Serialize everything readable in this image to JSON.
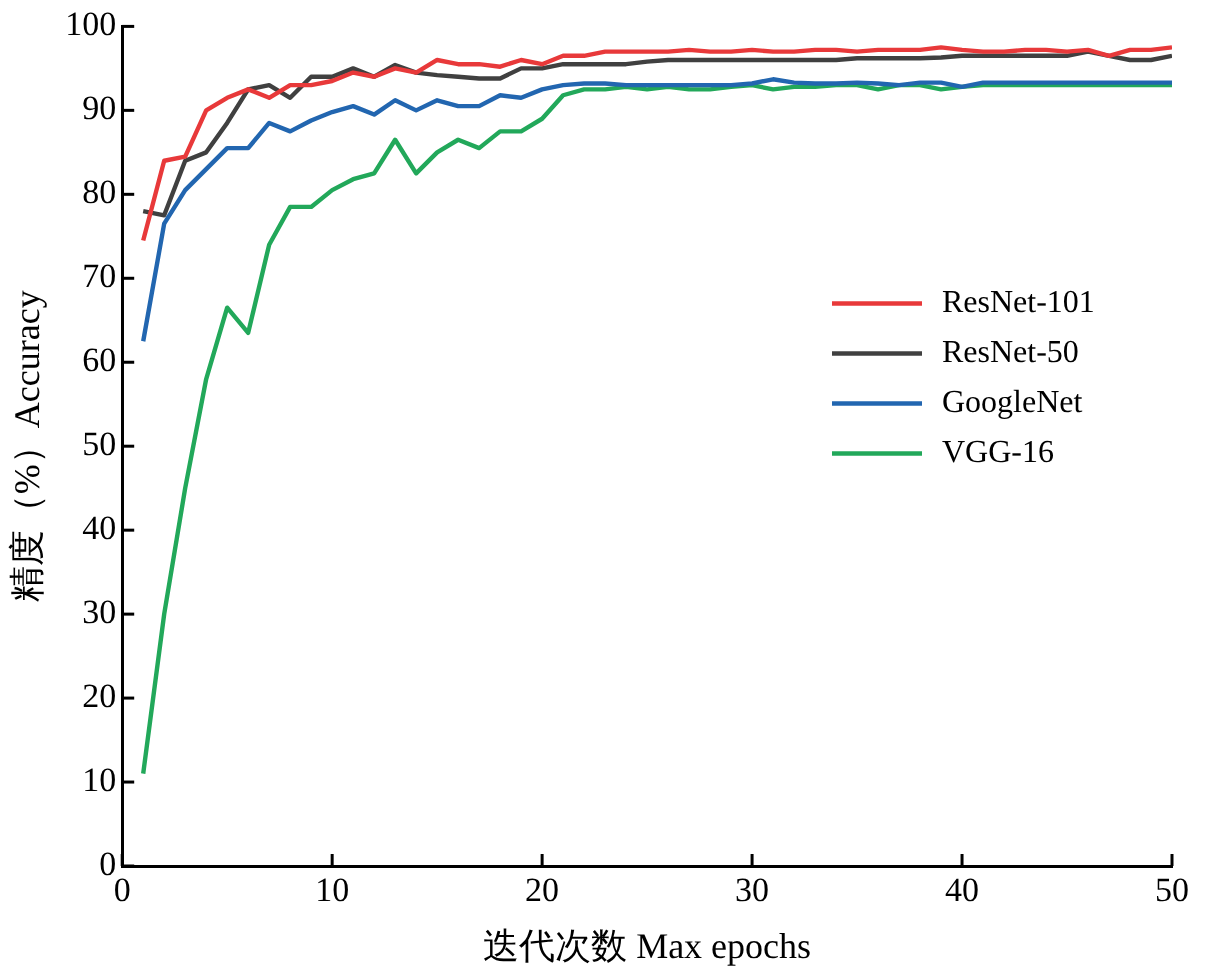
{
  "chart_data": {
    "type": "line",
    "xlabel": "迭代次数 Max epochs",
    "ylabel": "精度（%）Accuracy",
    "x": [
      1,
      2,
      3,
      4,
      5,
      6,
      7,
      8,
      9,
      10,
      11,
      12,
      13,
      14,
      15,
      16,
      17,
      18,
      19,
      20,
      21,
      22,
      23,
      24,
      25,
      26,
      27,
      28,
      29,
      30,
      31,
      32,
      33,
      34,
      35,
      36,
      37,
      38,
      39,
      40,
      41,
      42,
      43,
      44,
      45,
      46,
      47,
      48,
      49,
      50
    ],
    "xlim": [
      0,
      50
    ],
    "xticks": [
      0,
      10,
      20,
      30,
      40,
      50
    ],
    "ylim": [
      0,
      100
    ],
    "yticks": [
      0,
      10,
      20,
      30,
      40,
      50,
      60,
      70,
      80,
      90,
      100
    ],
    "grid": false,
    "legend": "right",
    "marker": "none",
    "line_style": "solid",
    "series": [
      {
        "name": "ResNet-101",
        "color": "#e8393a",
        "values": [
          74.5,
          84,
          84.5,
          90,
          91.5,
          92.5,
          91.5,
          93,
          93,
          93.5,
          94.5,
          94,
          95,
          94.5,
          96,
          95.5,
          95.5,
          95.2,
          96,
          95.5,
          96.5,
          96.5,
          97,
          97,
          97,
          97,
          97.2,
          97,
          97,
          97.2,
          97,
          97,
          97.2,
          97.2,
          97,
          97.2,
          97.2,
          97.2,
          97.5,
          97.2,
          97,
          97,
          97.2,
          97.2,
          97,
          97.2,
          96.5,
          97.2,
          97.2,
          97.5
        ]
      },
      {
        "name": "ResNet-50",
        "color": "#404040",
        "values": [
          78,
          77.5,
          84,
          85,
          88.5,
          92.5,
          93,
          91.5,
          94,
          94,
          95,
          94,
          95.4,
          94.5,
          94.2,
          94,
          93.8,
          93.8,
          95,
          95,
          95.5,
          95.5,
          95.5,
          95.5,
          95.8,
          96,
          96,
          96,
          96,
          96,
          96,
          96,
          96,
          96,
          96.2,
          96.2,
          96.2,
          96.2,
          96.3,
          96.5,
          96.5,
          96.5,
          96.5,
          96.5,
          96.5,
          97,
          96.5,
          96,
          96,
          96.5
        ]
      },
      {
        "name": "GoogleNet",
        "color": "#2266b0",
        "values": [
          62.5,
          76.5,
          80.5,
          83,
          85.5,
          85.5,
          88.5,
          87.5,
          88.8,
          89.8,
          90.5,
          89.5,
          91.2,
          90,
          91.2,
          90.5,
          90.5,
          91.8,
          91.5,
          92.5,
          93,
          93.2,
          93.2,
          93,
          93,
          93,
          93,
          93,
          93,
          93.2,
          93.7,
          93.3,
          93.2,
          93.2,
          93.3,
          93.2,
          93,
          93.3,
          93.3,
          92.8,
          93.3,
          93.3,
          93.3,
          93.3,
          93.3,
          93.3,
          93.3,
          93.3,
          93.3,
          93.3
        ]
      },
      {
        "name": "VGG-16",
        "color": "#22a85a",
        "values": [
          11,
          30,
          45,
          58,
          66.5,
          63.5,
          74,
          78.5,
          78.5,
          80.5,
          81.8,
          82.5,
          86.5,
          82.5,
          85,
          86.5,
          85.5,
          87.5,
          87.5,
          89,
          91.8,
          92.5,
          92.5,
          92.8,
          92.5,
          92.8,
          92.5,
          92.5,
          92.8,
          93,
          92.5,
          92.8,
          92.8,
          93,
          93,
          92.5,
          93,
          93,
          92.5,
          92.8,
          93,
          93,
          93,
          93,
          93,
          93,
          93,
          93,
          93,
          93
        ]
      }
    ]
  }
}
